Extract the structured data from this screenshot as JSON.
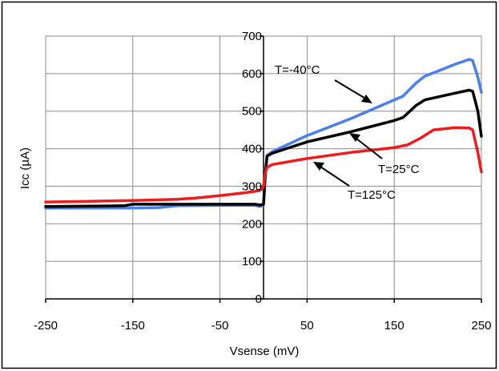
{
  "chart_data": {
    "type": "line",
    "title": "",
    "xlabel": "Vsense (mV)",
    "ylabel": "Icc (µA)",
    "xlim": [
      -250,
      250
    ],
    "ylim": [
      0,
      700
    ],
    "x_ticks": [
      -250,
      -150,
      -50,
      50,
      150,
      250
    ],
    "y_ticks": [
      0,
      100,
      200,
      300,
      400,
      500,
      600,
      700
    ],
    "grid": "vertical and horizontal",
    "legend": "none",
    "series": [
      {
        "name": "T=-40°C",
        "color": "#4a7ff0",
        "points": [
          [
            -250,
            242
          ],
          [
            -200,
            242
          ],
          [
            -150,
            242
          ],
          [
            -120,
            243
          ],
          [
            -100,
            248
          ],
          [
            -50,
            249
          ],
          [
            -10,
            249
          ],
          [
            -4,
            246
          ],
          [
            0,
            250
          ],
          [
            2,
            330
          ],
          [
            4,
            382
          ],
          [
            10,
            392
          ],
          [
            50,
            435
          ],
          [
            100,
            480
          ],
          [
            150,
            530
          ],
          [
            160,
            540
          ],
          [
            175,
            575
          ],
          [
            185,
            593
          ],
          [
            220,
            625
          ],
          [
            236,
            638
          ],
          [
            240,
            635
          ],
          [
            246,
            590
          ],
          [
            250,
            550
          ]
        ]
      },
      {
        "name": "T=25°C",
        "color": "#000000",
        "points": [
          [
            -250,
            246
          ],
          [
            -200,
            247
          ],
          [
            -160,
            248
          ],
          [
            -150,
            252
          ],
          [
            -100,
            252
          ],
          [
            -50,
            252
          ],
          [
            -10,
            252
          ],
          [
            -4,
            250
          ],
          [
            0,
            252
          ],
          [
            2,
            330
          ],
          [
            4,
            380
          ],
          [
            10,
            388
          ],
          [
            50,
            418
          ],
          [
            100,
            445
          ],
          [
            150,
            475
          ],
          [
            160,
            483
          ],
          [
            175,
            515
          ],
          [
            185,
            530
          ],
          [
            220,
            548
          ],
          [
            236,
            556
          ],
          [
            240,
            553
          ],
          [
            246,
            500
          ],
          [
            250,
            433
          ]
        ]
      },
      {
        "name": "T=125°C",
        "color": "#ee1c1c",
        "points": [
          [
            -250,
            258
          ],
          [
            -200,
            260
          ],
          [
            -150,
            262
          ],
          [
            -100,
            265
          ],
          [
            -80,
            268
          ],
          [
            -50,
            275
          ],
          [
            -20,
            283
          ],
          [
            -6,
            288
          ],
          [
            -2,
            292
          ],
          [
            0,
            300
          ],
          [
            2,
            335
          ],
          [
            4,
            350
          ],
          [
            10,
            358
          ],
          [
            50,
            374
          ],
          [
            100,
            390
          ],
          [
            150,
            403
          ],
          [
            165,
            410
          ],
          [
            180,
            428
          ],
          [
            195,
            450
          ],
          [
            220,
            456
          ],
          [
            236,
            455
          ],
          [
            240,
            450
          ],
          [
            246,
            390
          ],
          [
            250,
            338
          ]
        ]
      }
    ],
    "annotations": [
      {
        "label": "T=-40°C",
        "series": 0
      },
      {
        "label": "T=25°C",
        "series": 1
      },
      {
        "label": "T=125°C",
        "series": 2
      }
    ]
  }
}
